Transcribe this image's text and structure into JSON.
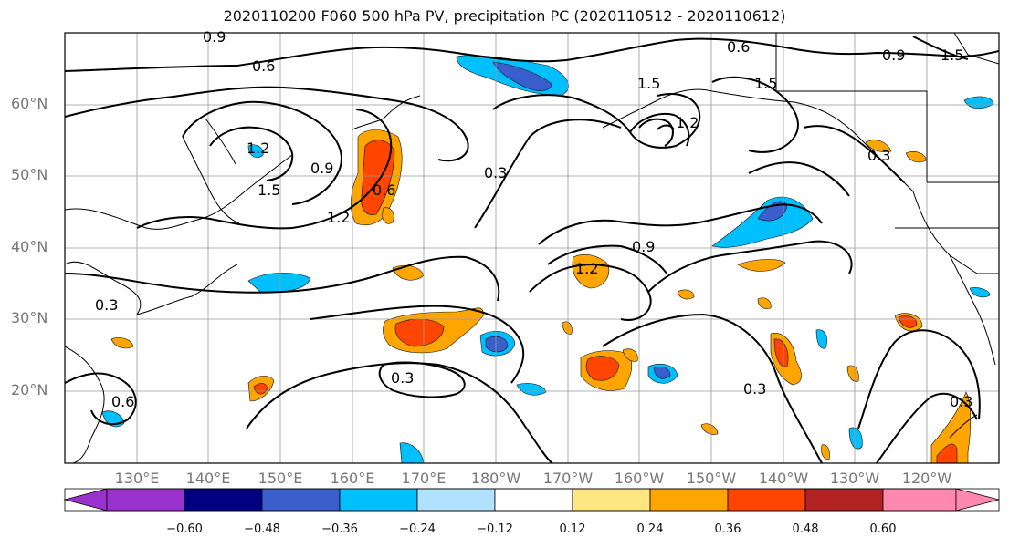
{
  "title": "2020110200 F060 500 hPa PV, precipitation PC (2020110512 - 2020110612)",
  "lat_labels": [
    "60°N",
    "50°N",
    "40°N",
    "30°N",
    "20°N"
  ],
  "lon_labels": [
    "130°E",
    "140°E",
    "150°E",
    "160°E",
    "170°E",
    "180°W",
    "170°W",
    "160°W",
    "150°W",
    "140°W",
    "130°W",
    "120°W"
  ],
  "contour_labels": [
    "0.9",
    "0.6",
    "0.6",
    "0.9",
    "1.5",
    "1.5",
    "1.5",
    "1.2",
    "0.9",
    "1.5",
    "0.3",
    "1.2",
    "0.9",
    "0.3",
    "0.3",
    "0.6",
    "0.3",
    "0.3",
    "1.2",
    "1.2",
    "0.3",
    "0.6"
  ],
  "colorbar": {
    "ticks": [
      "−0.60",
      "−0.48",
      "−0.36",
      "−0.24",
      "−0.12",
      "0.12",
      "0.24",
      "0.36",
      "0.48",
      "0.60"
    ],
    "colors": [
      "#9932cc",
      "#000080",
      "#3a5fcd",
      "#00bfff",
      "#b0e2ff",
      "#ffffff",
      "#ffe680",
      "#ffa500",
      "#ff4500",
      "#b22222",
      "#ff88b0"
    ]
  }
}
